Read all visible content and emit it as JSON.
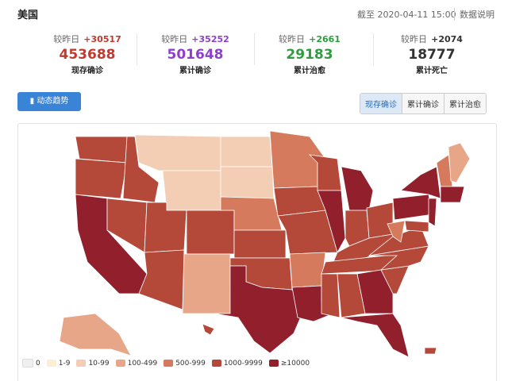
{
  "header": {
    "title": "美国",
    "timestamp": "截至 2020-04-11 15:00",
    "info": "数据说明"
  },
  "stats": [
    {
      "delta_label": "较昨日",
      "delta": "+30517",
      "value": "453688",
      "label": "现存确诊"
    },
    {
      "delta_label": "较昨日",
      "delta": "+35252",
      "value": "501648",
      "label": "累计确诊"
    },
    {
      "delta_label": "较昨日",
      "delta": "+2661",
      "value": "29183",
      "label": "累计治愈"
    },
    {
      "delta_label": "较昨日",
      "delta": "+2074",
      "value": "18777",
      "label": "累计死亡"
    }
  ],
  "trend_button": "动态趋势",
  "tabs": [
    "现存确诊",
    "累计确诊",
    "累计治愈"
  ],
  "legend": [
    {
      "label": "0",
      "color": "#f0f0f0"
    },
    {
      "label": "1-9",
      "color": "#fbeed2"
    },
    {
      "label": "10-99",
      "color": "#f3cdb4"
    },
    {
      "label": "100-499",
      "color": "#e8a689"
    },
    {
      "label": "500-999",
      "color": "#d57a5d"
    },
    {
      "label": "1000-9999",
      "color": "#b4493a"
    },
    {
      "label": "≥10000",
      "color": "#911f2c"
    }
  ]
}
